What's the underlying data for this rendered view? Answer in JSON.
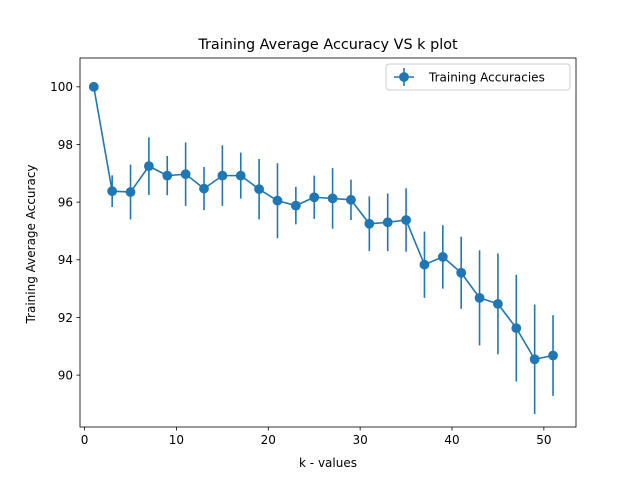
{
  "chart_data": {
    "type": "line",
    "title": "Training Average Accuracy VS k plot",
    "xlabel": "k - values",
    "ylabel": "Training Average Accuracy",
    "xlim": [
      -0.5,
      53.5
    ],
    "ylim": [
      88.2,
      101.0
    ],
    "xticks": [
      0,
      10,
      20,
      30,
      40,
      50
    ],
    "yticks": [
      90,
      92,
      94,
      96,
      98,
      100
    ],
    "grid": false,
    "legend": "top-right",
    "series": [
      {
        "name": "Training Accuracies",
        "color": "#1f77b4",
        "marker": "circle",
        "error_bars": true,
        "x": [
          1,
          3,
          5,
          7,
          9,
          11,
          13,
          15,
          17,
          19,
          21,
          23,
          25,
          27,
          29,
          31,
          33,
          35,
          37,
          39,
          41,
          43,
          45,
          47,
          49,
          51
        ],
        "y": [
          100.0,
          96.38,
          96.35,
          97.25,
          96.92,
          96.97,
          96.47,
          96.92,
          96.92,
          96.45,
          96.05,
          95.88,
          96.17,
          96.13,
          96.08,
          95.25,
          95.3,
          95.38,
          93.83,
          94.1,
          93.55,
          92.68,
          92.47,
          91.63,
          90.55,
          90.68
        ],
        "yerr": [
          0,
          0.55,
          0.95,
          1.0,
          0.68,
          1.1,
          0.75,
          1.05,
          0.8,
          1.05,
          1.3,
          0.65,
          0.75,
          1.05,
          0.7,
          0.95,
          1.0,
          1.1,
          1.15,
          1.1,
          1.25,
          1.65,
          1.75,
          1.85,
          1.9,
          1.4
        ]
      }
    ]
  }
}
